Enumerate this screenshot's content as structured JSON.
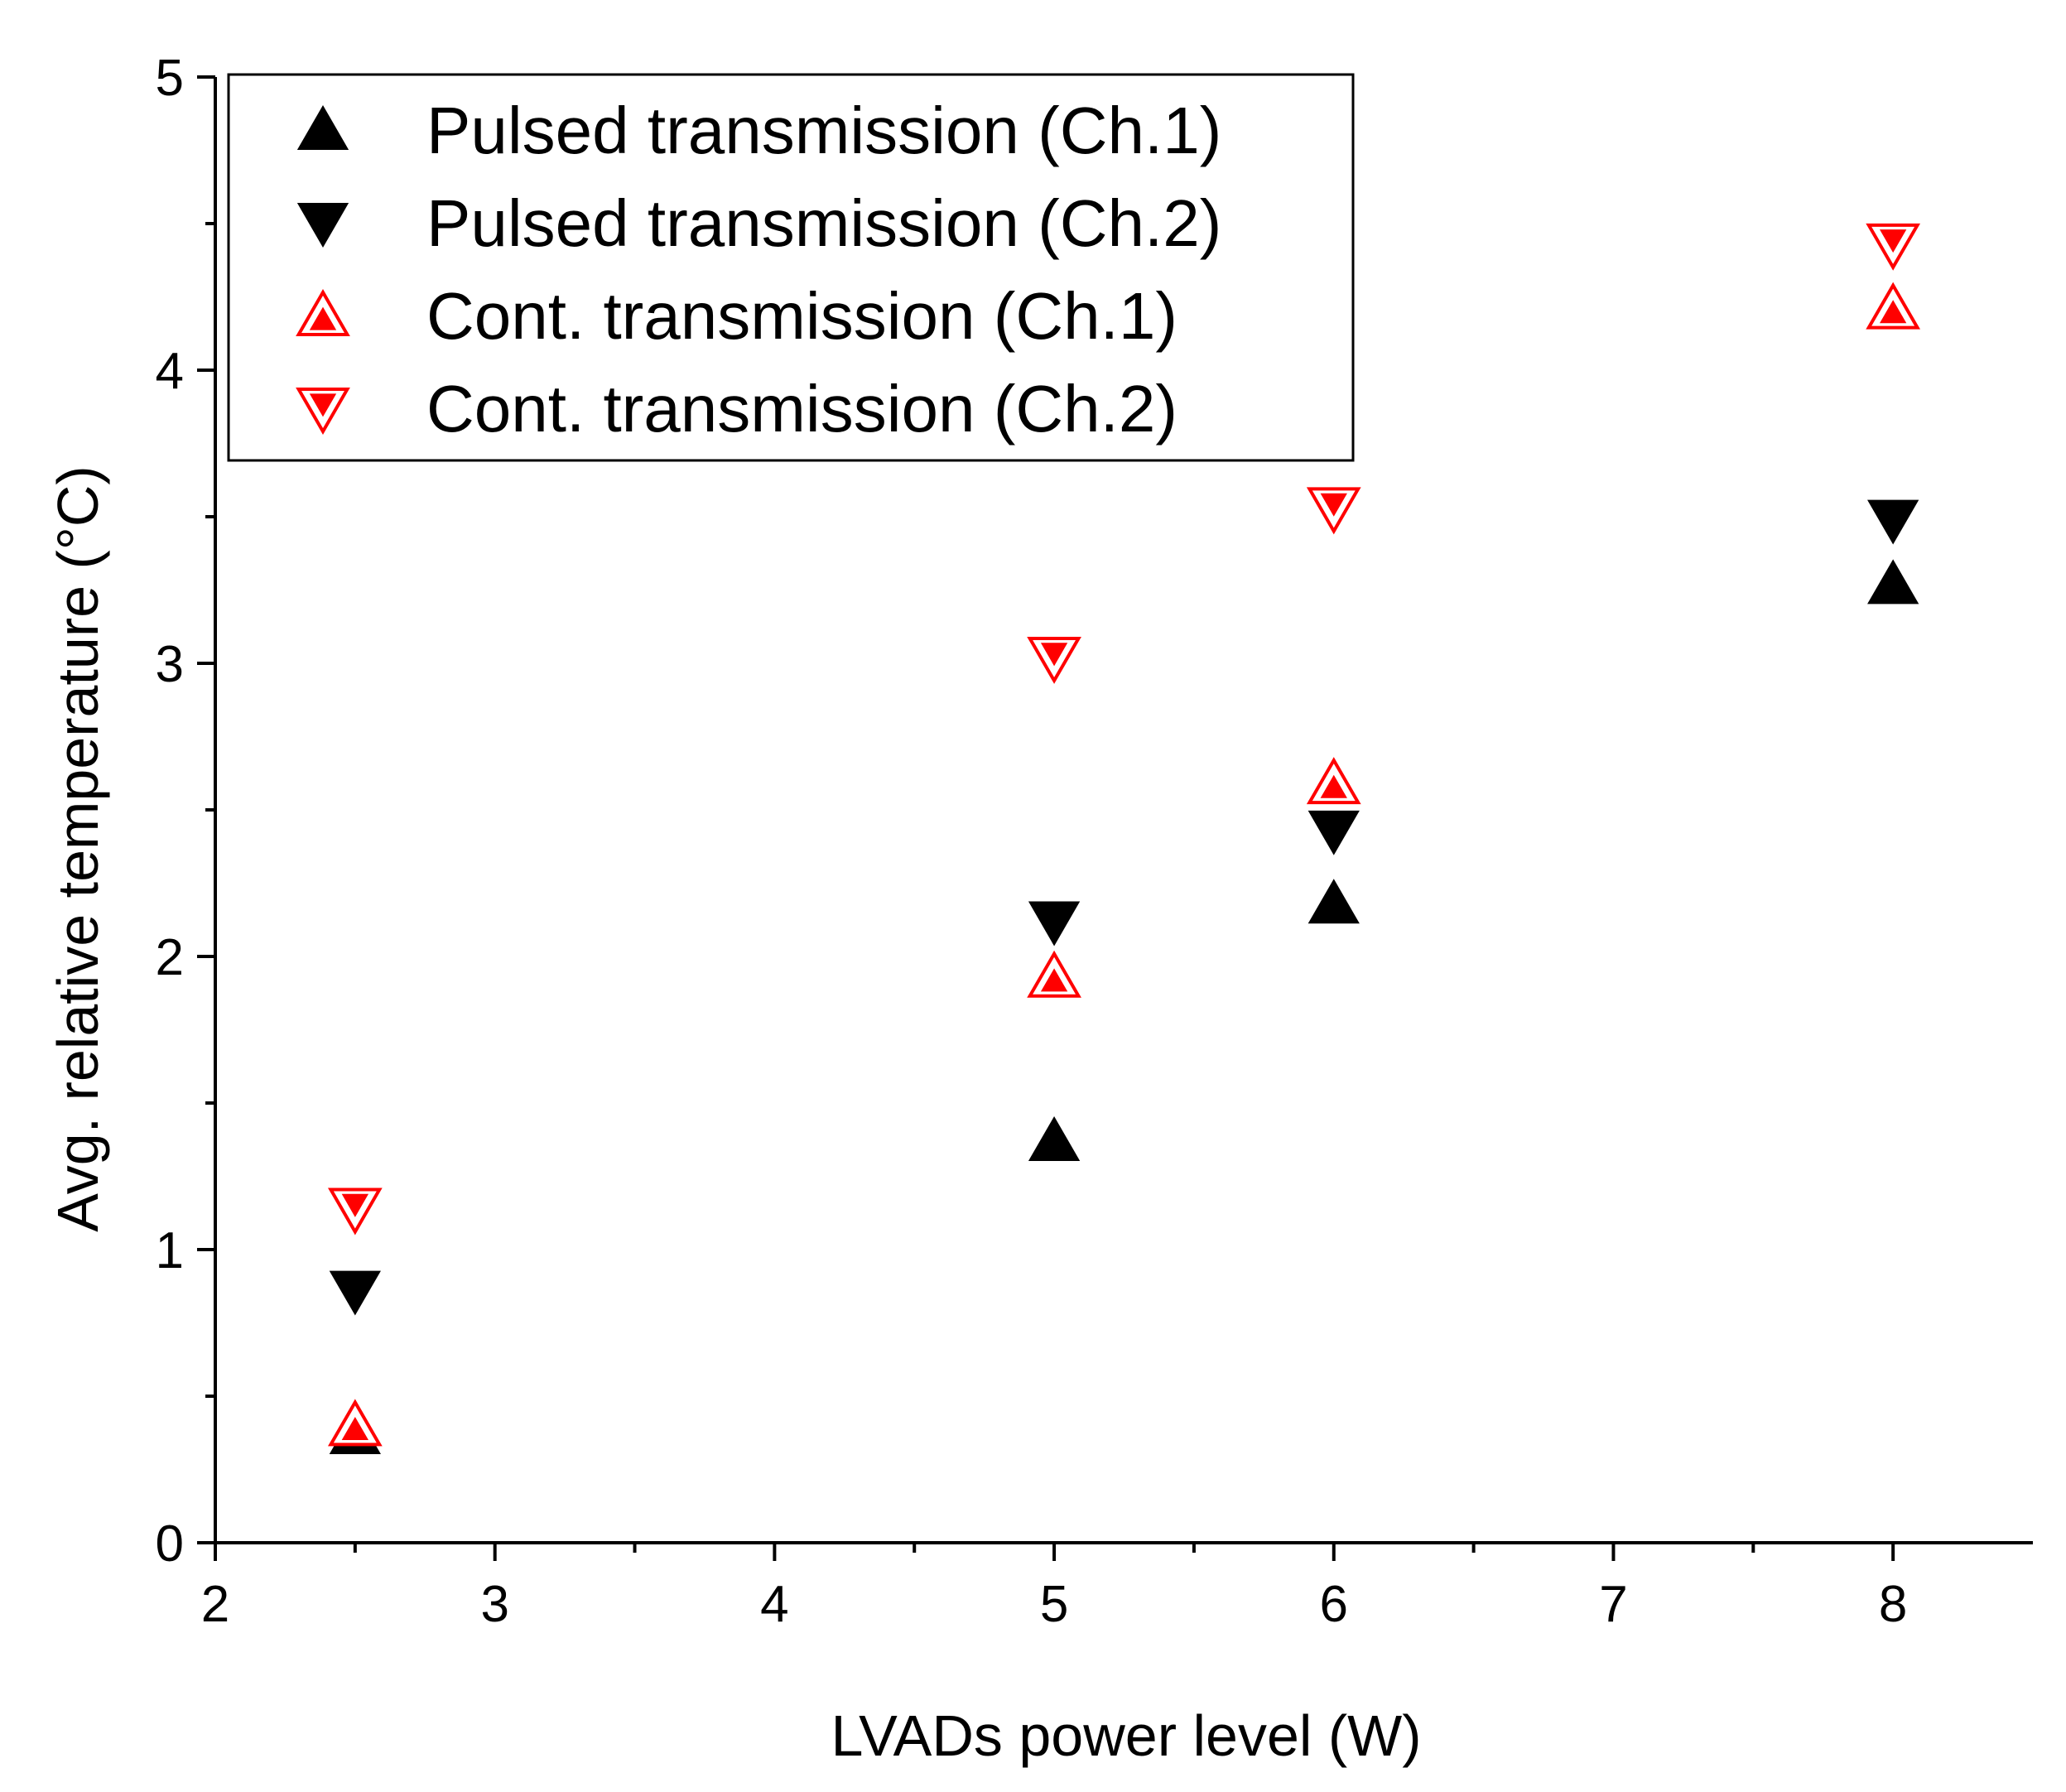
{
  "chart_data": {
    "type": "scatter",
    "title": "",
    "xlabel": "LVADs power level (W)",
    "ylabel": "Avg. relative temperature  (°C)",
    "xlim": [
      2,
      8.5
    ],
    "ylim": [
      0,
      5
    ],
    "xticks": [
      2,
      3,
      4,
      5,
      6,
      7,
      8
    ],
    "yticks": [
      0,
      1,
      2,
      3,
      4,
      5
    ],
    "grid": false,
    "legend_position": "top-left",
    "series": [
      {
        "name": "Pulsed transmission (Ch.1)",
        "marker": "triangle-up",
        "filled": true,
        "color": "#000000",
        "x": [
          2.5,
          5,
          6,
          8
        ],
        "y": [
          0.37,
          1.37,
          2.18,
          3.27
        ]
      },
      {
        "name": "Pulsed transmission (Ch.2)",
        "marker": "triangle-down",
        "filled": true,
        "color": "#000000",
        "x": [
          2.5,
          5,
          6,
          8
        ],
        "y": [
          0.86,
          2.12,
          2.43,
          3.49
        ]
      },
      {
        "name": "Cont. transmission (Ch.1)",
        "marker": "triangle-up",
        "filled": false,
        "color": "#ff0000",
        "x": [
          2.5,
          5,
          6,
          8
        ],
        "y": [
          0.4,
          1.93,
          2.59,
          4.21
        ]
      },
      {
        "name": "Cont. transmission (Ch.2)",
        "marker": "triangle-down",
        "filled": false,
        "color": "#ff0000",
        "x": [
          2.5,
          5,
          6,
          8
        ],
        "y": [
          1.14,
          3.02,
          3.53,
          4.43
        ]
      }
    ]
  }
}
